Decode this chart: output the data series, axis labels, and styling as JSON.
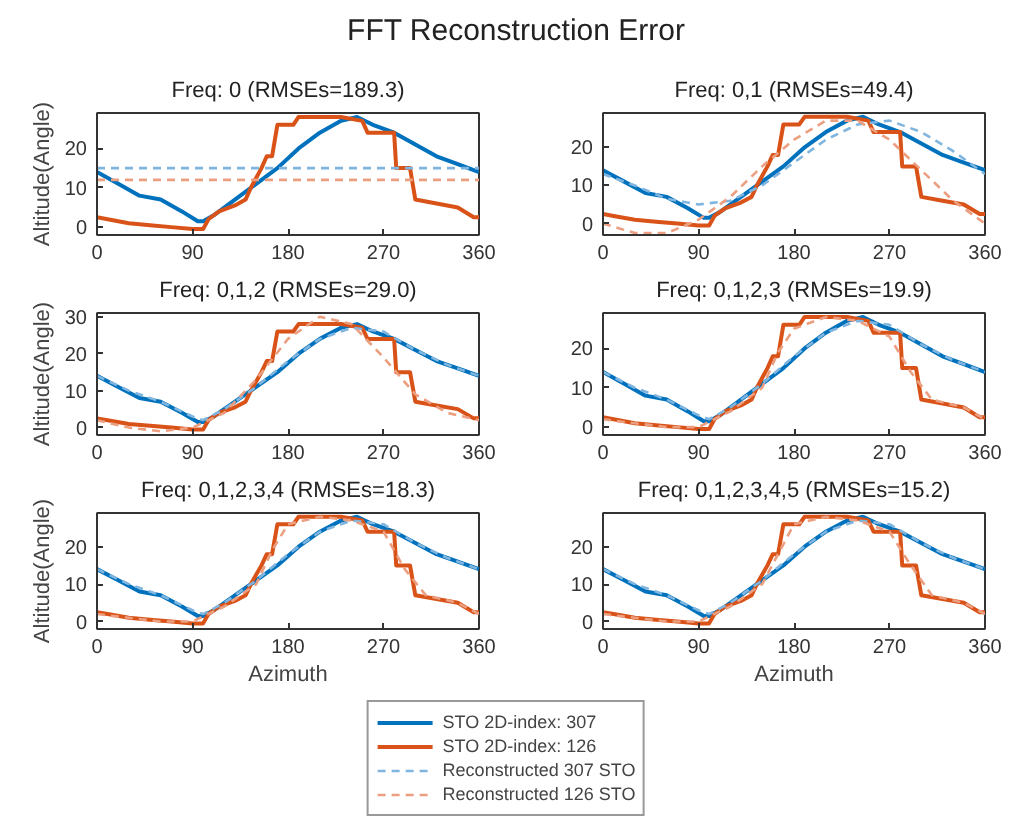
{
  "chart_data": [
    {
      "type": "line",
      "title": "FFT Reconstruction Error",
      "subtitle": "Freq: 0 (RMSEs=189.3)",
      "ylabel": "Altitude(Angle)",
      "xlim": [
        0,
        360
      ],
      "xticks": [
        0,
        90,
        180,
        270,
        360
      ],
      "ylim": [
        -2,
        29
      ],
      "yticks": [
        0,
        10,
        20
      ],
      "grid": false,
      "legend": false,
      "series": [
        {
          "color": "#0072bd",
          "line_style": "solid",
          "x": [
            0,
            20,
            40,
            60,
            80,
            95,
            100,
            110,
            130,
            150,
            170,
            190,
            210,
            230,
            245,
            260,
            280,
            300,
            320,
            340,
            360
          ],
          "values": [
            14,
            11,
            8,
            7,
            4,
            1.5,
            1.5,
            3,
            7,
            11,
            15,
            20,
            24,
            27,
            28,
            26,
            24,
            21,
            18,
            16,
            14
          ]
        },
        {
          "color": "#d95319",
          "line_style": "solid",
          "x": [
            0,
            10,
            30,
            50,
            70,
            90,
            100,
            105,
            115,
            130,
            140,
            145,
            155,
            160,
            165,
            170,
            185,
            190,
            230,
            250,
            255,
            280,
            282,
            295,
            300,
            320,
            340,
            355,
            360
          ],
          "values": [
            2.5,
            2,
            1,
            0.5,
            0,
            -0.5,
            -0.5,
            2,
            4,
            5.5,
            7,
            10,
            15,
            18,
            18,
            26,
            26,
            28,
            28,
            27,
            24,
            24,
            15,
            15,
            7,
            6,
            5,
            2.5,
            2.5
          ]
        },
        {
          "color": "#7fb5de",
          "line_style": "dashed",
          "x": [
            0,
            360
          ],
          "values": [
            15,
            15
          ]
        },
        {
          "color": "#ec9f80",
          "line_style": "dashed",
          "x": [
            0,
            360
          ],
          "values": [
            12,
            12
          ]
        }
      ]
    },
    {
      "type": "line",
      "title": "Freq: 0,1 (RMSEs=49.4)",
      "xlim": [
        0,
        360
      ],
      "xticks": [
        0,
        90,
        180,
        270,
        360
      ],
      "ylim": [
        -3,
        29
      ],
      "yticks": [
        0,
        10,
        20
      ],
      "grid": false,
      "legend": false,
      "series": [
        {
          "color": "#0072bd",
          "line_style": "solid",
          "x": [
            0,
            20,
            40,
            60,
            80,
            95,
            100,
            110,
            130,
            150,
            170,
            190,
            210,
            230,
            245,
            260,
            280,
            300,
            320,
            340,
            360
          ],
          "values": [
            14,
            11,
            8,
            7,
            4,
            1.5,
            1.5,
            3,
            7,
            11,
            15,
            20,
            24,
            27,
            28,
            26,
            24,
            21,
            18,
            16,
            14
          ]
        },
        {
          "color": "#d95319",
          "line_style": "solid",
          "x": [
            0,
            10,
            30,
            50,
            70,
            90,
            100,
            105,
            115,
            130,
            140,
            145,
            155,
            160,
            165,
            170,
            185,
            190,
            230,
            250,
            255,
            280,
            282,
            295,
            300,
            320,
            340,
            355,
            360
          ],
          "values": [
            2.5,
            2,
            1,
            0.5,
            0,
            -0.5,
            -0.5,
            2,
            4,
            5.5,
            7,
            10,
            15,
            18,
            18,
            26,
            26,
            28,
            28,
            27,
            24,
            24,
            15,
            15,
            7,
            6,
            5,
            2.5,
            2.5
          ]
        },
        {
          "color": "#7fb5de",
          "line_style": "dashed",
          "x": [
            0,
            30,
            60,
            90,
            120,
            150,
            180,
            210,
            240,
            270,
            300,
            330,
            360
          ],
          "values": [
            13,
            10,
            6.5,
            5,
            6,
            10,
            16,
            22,
            26,
            27,
            24,
            19,
            13
          ]
        },
        {
          "color": "#ec9f80",
          "line_style": "dashed",
          "x": [
            0,
            30,
            60,
            90,
            120,
            150,
            180,
            210,
            240,
            270,
            300,
            330,
            360
          ],
          "values": [
            0,
            -2.5,
            -2.5,
            1,
            7,
            15,
            22,
            27,
            27,
            22,
            14,
            6,
            0
          ]
        }
      ]
    },
    {
      "type": "line",
      "title": "Freq: 0,1,2 (RMSEs=29.0)",
      "ylabel": "Altitude(Angle)",
      "xlim": [
        0,
        360
      ],
      "xticks": [
        0,
        90,
        180,
        270,
        360
      ],
      "ylim": [
        -2,
        31
      ],
      "yticks": [
        0,
        10,
        20,
        30
      ],
      "grid": false,
      "legend": false,
      "series": [
        {
          "color": "#0072bd",
          "line_style": "solid",
          "x": [
            0,
            20,
            40,
            60,
            80,
            95,
            100,
            110,
            130,
            150,
            170,
            190,
            210,
            230,
            245,
            260,
            280,
            300,
            320,
            340,
            360
          ],
          "values": [
            14,
            11,
            8,
            7,
            4,
            1.5,
            1.5,
            3,
            7,
            11,
            15,
            20,
            24,
            27,
            28,
            26,
            24,
            21,
            18,
            16,
            14
          ]
        },
        {
          "color": "#d95319",
          "line_style": "solid",
          "x": [
            0,
            10,
            30,
            50,
            70,
            90,
            100,
            105,
            115,
            130,
            140,
            145,
            155,
            160,
            165,
            170,
            185,
            190,
            230,
            250,
            255,
            280,
            282,
            295,
            300,
            320,
            340,
            355,
            360
          ],
          "values": [
            2.5,
            2,
            1,
            0.5,
            0,
            -0.5,
            -0.5,
            2,
            4,
            5.5,
            7,
            10,
            15,
            18,
            18,
            26,
            26,
            28,
            28,
            27,
            24,
            24,
            15,
            15,
            7,
            6,
            5,
            2.5,
            2.5
          ]
        },
        {
          "color": "#7fb5de",
          "line_style": "dashed",
          "x": [
            0,
            30,
            60,
            90,
            100,
            120,
            150,
            180,
            210,
            240,
            270,
            300,
            330,
            360
          ],
          "values": [
            14,
            10,
            7,
            3,
            2,
            5,
            11,
            18,
            24,
            27,
            26,
            21,
            17,
            14
          ]
        },
        {
          "color": "#ec9f80",
          "line_style": "dashed",
          "x": [
            0,
            30,
            60,
            90,
            120,
            150,
            180,
            210,
            240,
            270,
            300,
            330,
            360
          ],
          "values": [
            2,
            0,
            -1,
            0,
            4,
            13,
            24,
            30,
            28,
            19,
            9,
            4,
            2
          ]
        }
      ]
    },
    {
      "type": "line",
      "title": "Freq: 0,1,2,3 (RMSEs=19.9)",
      "xlim": [
        0,
        360
      ],
      "xticks": [
        0,
        90,
        180,
        270,
        360
      ],
      "ylim": [
        -2,
        29
      ],
      "yticks": [
        0,
        10,
        20
      ],
      "grid": false,
      "legend": false,
      "series": [
        {
          "color": "#0072bd",
          "line_style": "solid",
          "x": [
            0,
            20,
            40,
            60,
            80,
            95,
            100,
            110,
            130,
            150,
            170,
            190,
            210,
            230,
            245,
            260,
            280,
            300,
            320,
            340,
            360
          ],
          "values": [
            14,
            11,
            8,
            7,
            4,
            1.5,
            1.5,
            3,
            7,
            11,
            15,
            20,
            24,
            27,
            28,
            26,
            24,
            21,
            18,
            16,
            14
          ]
        },
        {
          "color": "#d95319",
          "line_style": "solid",
          "x": [
            0,
            10,
            30,
            50,
            70,
            90,
            100,
            105,
            115,
            130,
            140,
            145,
            155,
            160,
            165,
            170,
            185,
            190,
            230,
            250,
            255,
            280,
            282,
            295,
            300,
            320,
            340,
            355,
            360
          ],
          "values": [
            2.5,
            2,
            1,
            0.5,
            0,
            -0.5,
            -0.5,
            2,
            4,
            5.5,
            7,
            10,
            15,
            18,
            18,
            26,
            26,
            28,
            28,
            27,
            24,
            24,
            15,
            15,
            7,
            6,
            5,
            2.5,
            2.5
          ]
        },
        {
          "color": "#7fb5de",
          "line_style": "dashed",
          "x": [
            0,
            30,
            60,
            90,
            100,
            120,
            150,
            180,
            210,
            240,
            270,
            300,
            330,
            360
          ],
          "values": [
            14,
            10,
            7,
            3,
            2,
            5,
            11,
            18,
            24,
            27,
            26,
            21,
            17,
            14
          ]
        },
        {
          "color": "#ec9f80",
          "line_style": "dashed",
          "x": [
            0,
            30,
            60,
            90,
            120,
            150,
            165,
            180,
            210,
            240,
            270,
            290,
            310,
            340,
            360
          ],
          "values": [
            2,
            1,
            0,
            0,
            4,
            10,
            19,
            25,
            28,
            27,
            23,
            14,
            7,
            5,
            2
          ]
        }
      ]
    },
    {
      "type": "line",
      "title": "Freq: 0,1,2,3,4 (RMSEs=18.3)",
      "xlabel": "Azimuth",
      "ylabel": "Altitude(Angle)",
      "xlim": [
        0,
        360
      ],
      "xticks": [
        0,
        90,
        180,
        270,
        360
      ],
      "ylim": [
        -2,
        29
      ],
      "yticks": [
        0,
        10,
        20
      ],
      "grid": false,
      "legend": false,
      "series": [
        {
          "color": "#0072bd",
          "line_style": "solid",
          "x": [
            0,
            20,
            40,
            60,
            80,
            95,
            100,
            110,
            130,
            150,
            170,
            190,
            210,
            230,
            245,
            260,
            280,
            300,
            320,
            340,
            360
          ],
          "values": [
            14,
            11,
            8,
            7,
            4,
            1.5,
            1.5,
            3,
            7,
            11,
            15,
            20,
            24,
            27,
            28,
            26,
            24,
            21,
            18,
            16,
            14
          ]
        },
        {
          "color": "#d95319",
          "line_style": "solid",
          "x": [
            0,
            10,
            30,
            50,
            70,
            90,
            100,
            105,
            115,
            130,
            140,
            145,
            155,
            160,
            165,
            170,
            185,
            190,
            230,
            250,
            255,
            280,
            282,
            295,
            300,
            320,
            340,
            355,
            360
          ],
          "values": [
            2.5,
            2,
            1,
            0.5,
            0,
            -0.5,
            -0.5,
            2,
            4,
            5.5,
            7,
            10,
            15,
            18,
            18,
            26,
            26,
            28,
            28,
            27,
            24,
            24,
            15,
            15,
            7,
            6,
            5,
            2.5,
            2.5
          ]
        },
        {
          "color": "#7fb5de",
          "line_style": "dashed",
          "x": [
            0,
            30,
            60,
            90,
            100,
            120,
            150,
            180,
            210,
            240,
            270,
            300,
            330,
            360
          ],
          "values": [
            14,
            10,
            7,
            3,
            2,
            5,
            11,
            18,
            24,
            27,
            26,
            21,
            17,
            14
          ]
        },
        {
          "color": "#ec9f80",
          "line_style": "dashed",
          "x": [
            0,
            30,
            60,
            90,
            120,
            150,
            165,
            180,
            210,
            240,
            270,
            290,
            310,
            340,
            360
          ],
          "values": [
            2,
            1,
            0,
            0,
            4,
            10,
            19,
            26,
            28,
            27,
            24,
            14,
            7,
            5,
            2
          ]
        }
      ]
    },
    {
      "type": "line",
      "title": "Freq: 0,1,2,3,4,5 (RMSEs=15.2)",
      "xlabel": "Azimuth",
      "xlim": [
        0,
        360
      ],
      "xticks": [
        0,
        90,
        180,
        270,
        360
      ],
      "ylim": [
        -2,
        29
      ],
      "yticks": [
        0,
        10,
        20
      ],
      "grid": false,
      "legend": "bottom",
      "series": [
        {
          "name": "STO 2D-index: 307",
          "color": "#0072bd",
          "line_style": "solid",
          "x": [
            0,
            20,
            40,
            60,
            80,
            95,
            100,
            110,
            130,
            150,
            170,
            190,
            210,
            230,
            245,
            260,
            280,
            300,
            320,
            340,
            360
          ],
          "values": [
            14,
            11,
            8,
            7,
            4,
            1.5,
            1.5,
            3,
            7,
            11,
            15,
            20,
            24,
            27,
            28,
            26,
            24,
            21,
            18,
            16,
            14
          ]
        },
        {
          "name": "STO 2D-index: 126",
          "color": "#d95319",
          "line_style": "solid",
          "x": [
            0,
            10,
            30,
            50,
            70,
            90,
            100,
            105,
            115,
            130,
            140,
            145,
            155,
            160,
            165,
            170,
            185,
            190,
            230,
            250,
            255,
            280,
            282,
            295,
            300,
            320,
            340,
            355,
            360
          ],
          "values": [
            2.5,
            2,
            1,
            0.5,
            0,
            -0.5,
            -0.5,
            2,
            4,
            5.5,
            7,
            10,
            15,
            18,
            18,
            26,
            26,
            28,
            28,
            27,
            24,
            24,
            15,
            15,
            7,
            6,
            5,
            2.5,
            2.5
          ]
        },
        {
          "name": "Reconstructed 307 STO",
          "color": "#7fb5de",
          "line_style": "dashed",
          "x": [
            0,
            30,
            60,
            90,
            100,
            120,
            150,
            180,
            210,
            240,
            270,
            300,
            330,
            360
          ],
          "values": [
            14,
            10,
            7,
            3,
            2,
            5,
            11,
            18,
            24,
            27,
            26,
            21,
            17,
            14
          ]
        },
        {
          "name": "Reconstructed 126 STO",
          "color": "#ec9f80",
          "line_style": "dashed",
          "x": [
            0,
            30,
            60,
            90,
            120,
            150,
            165,
            180,
            210,
            240,
            270,
            290,
            310,
            340,
            360
          ],
          "values": [
            2,
            1,
            0,
            0,
            4,
            10,
            18,
            26,
            28,
            27,
            24,
            15,
            7,
            5,
            2
          ]
        }
      ]
    }
  ]
}
